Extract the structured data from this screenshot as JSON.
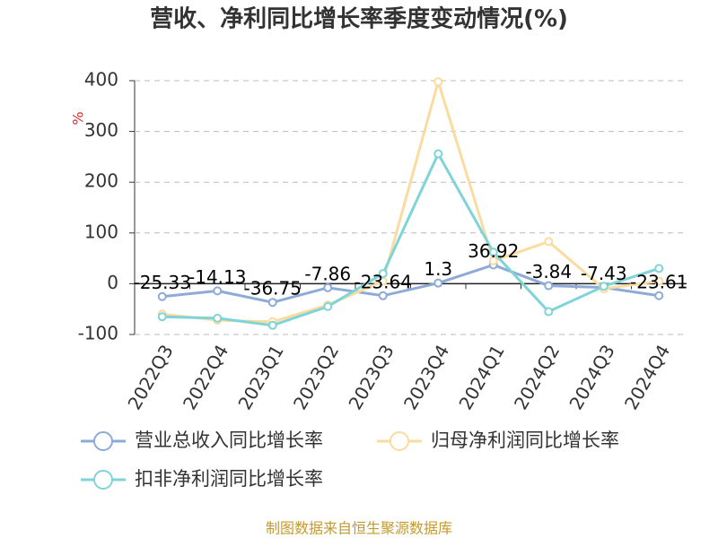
{
  "chart_data": {
    "type": "line",
    "title": "营收、净利同比增长率季度变动情况(%)",
    "y_label": "%",
    "source": "制图数据来自恒生聚源数据库",
    "categories": [
      "2022Q3",
      "2022Q4",
      "2023Q1",
      "2023Q2",
      "2023Q3",
      "2023Q4",
      "2024Q1",
      "2024Q2",
      "2024Q3",
      "2024Q4"
    ],
    "series": [
      {
        "name": "营业总收入同比增长率",
        "color": "#8eaad8",
        "values": [
          -25.33,
          -14.13,
          -36.75,
          -7.86,
          -23.64,
          1.3,
          36.92,
          -3.84,
          -7.43,
          -23.61
        ],
        "show_labels": true
      },
      {
        "name": "归母净利润同比增长率",
        "color": "#fbdca0",
        "values": [
          -60,
          -72,
          -75,
          -42,
          5,
          398,
          45,
          83,
          -10,
          5
        ]
      },
      {
        "name": "扣非净利润同比增长率",
        "color": "#7fd4d8",
        "values": [
          -65,
          -68,
          -82,
          -45,
          20,
          256,
          62,
          -55,
          -5,
          30
        ]
      }
    ],
    "ylim": [
      -100,
      400
    ],
    "yticks": [
      -100,
      0,
      100,
      200,
      300,
      400
    ],
    "grid": true
  }
}
